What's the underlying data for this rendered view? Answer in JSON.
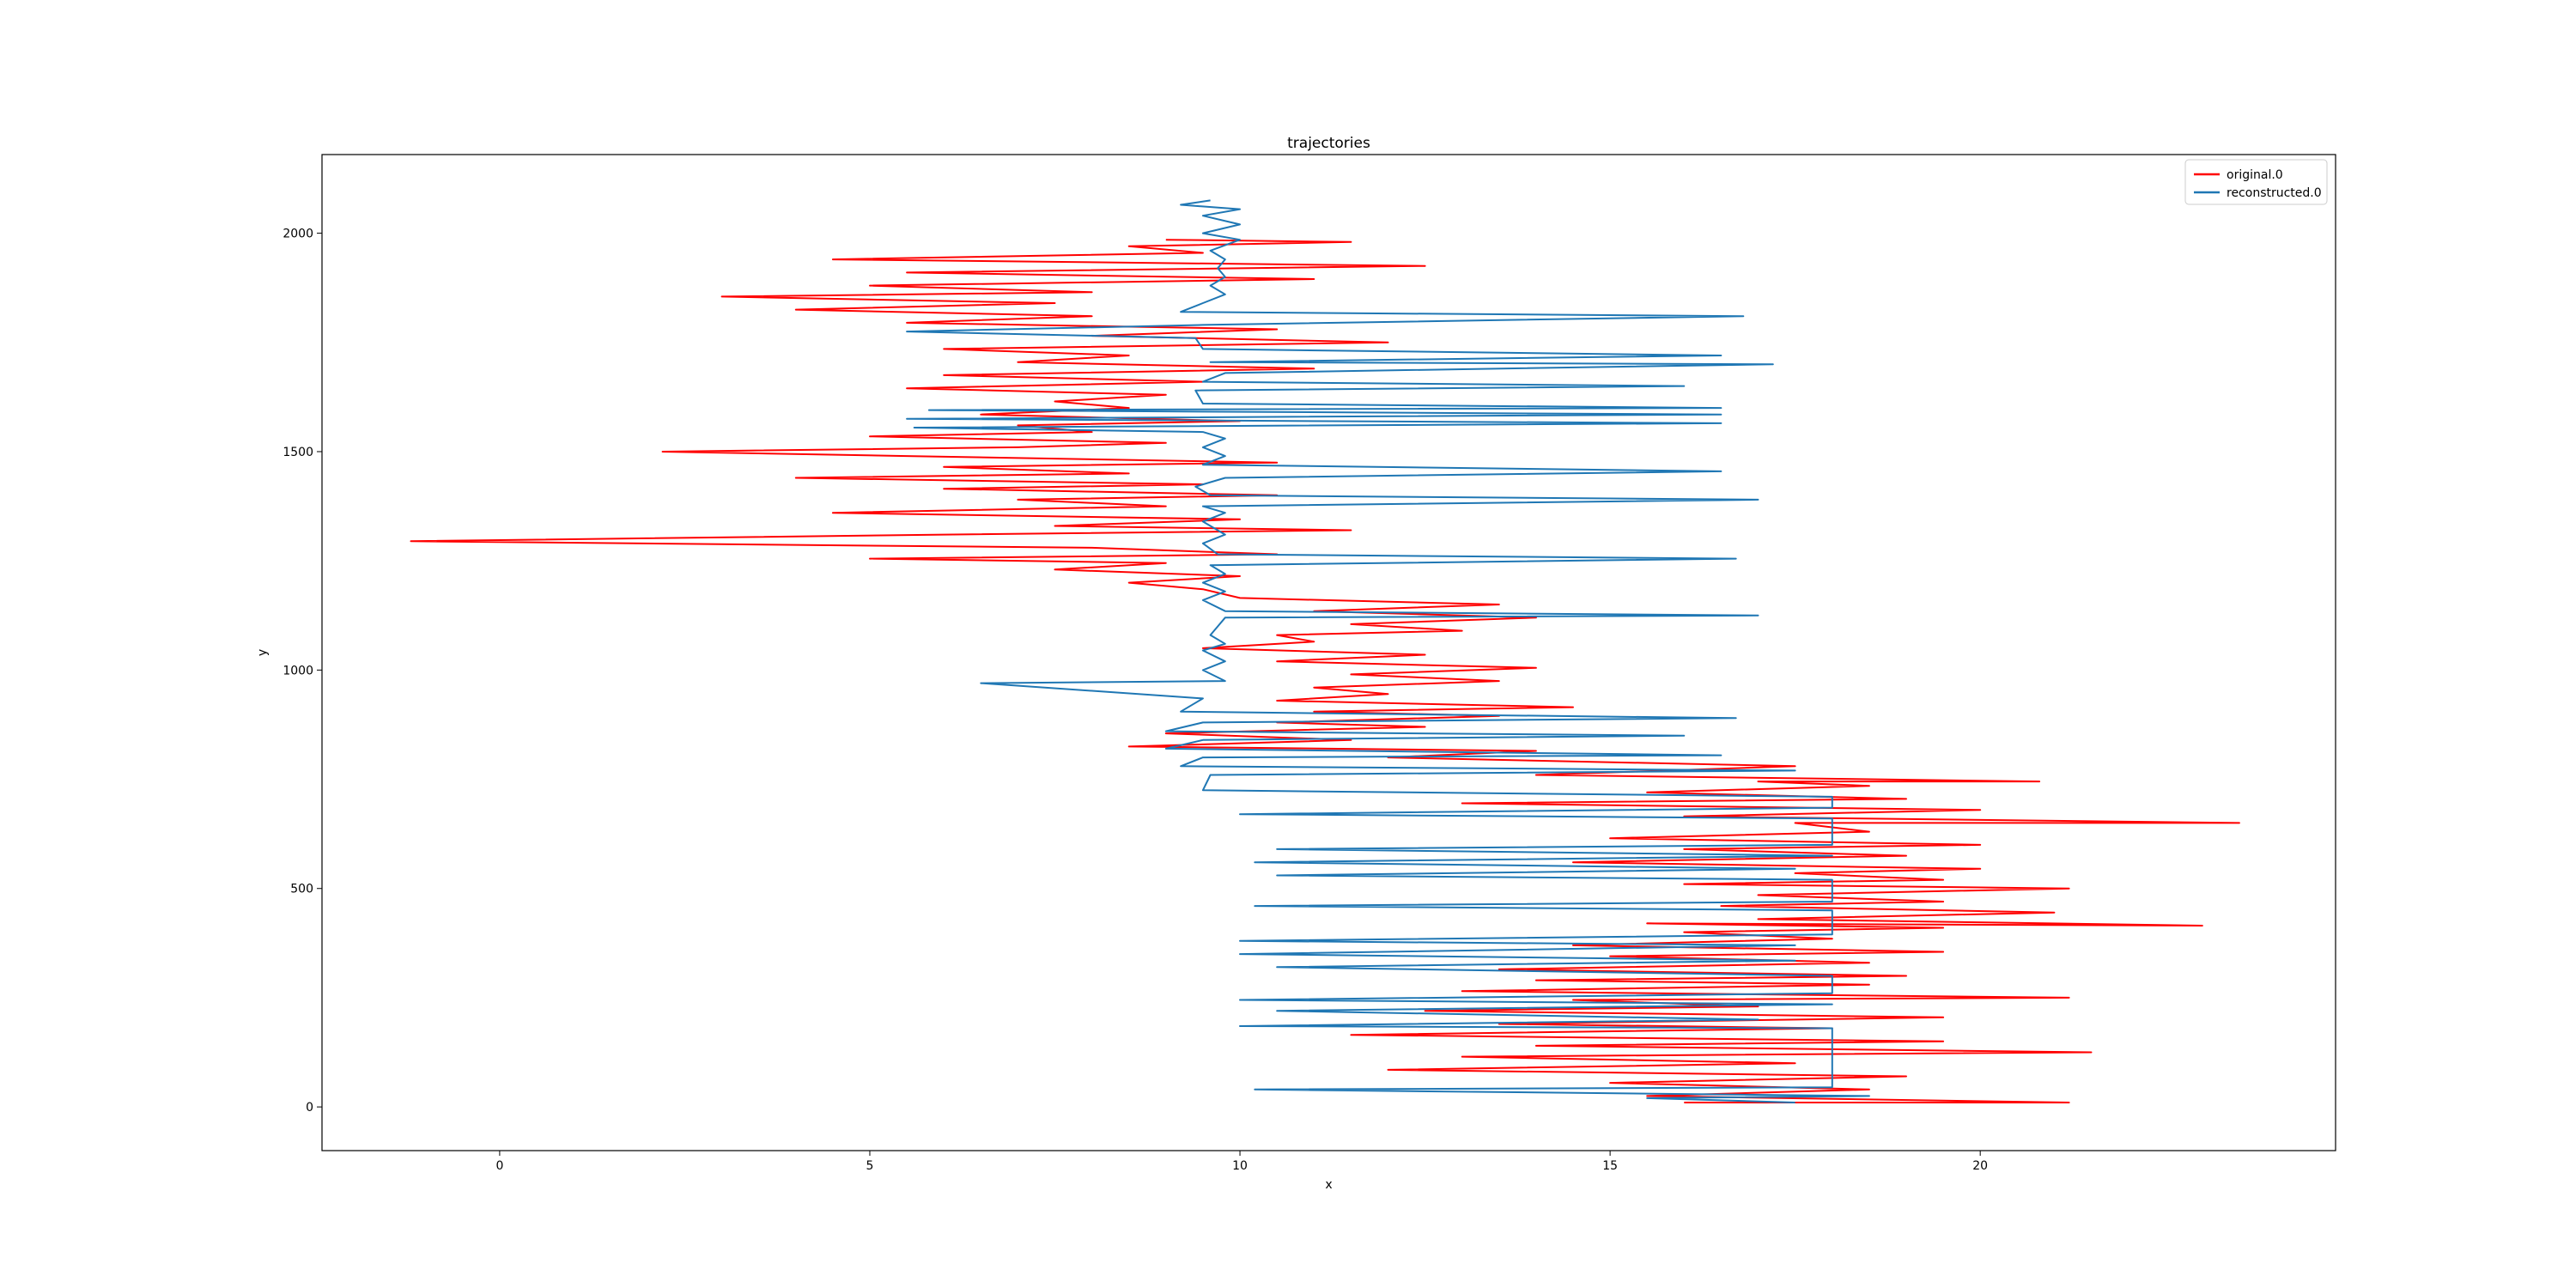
{
  "chart_data": {
    "type": "line",
    "title": "trajectories",
    "xlabel": "x",
    "ylabel": "y",
    "xlim": [
      -2.4,
      24.8
    ],
    "ylim": [
      -100,
      2180
    ],
    "xticks": [
      0,
      5,
      10,
      15,
      20
    ],
    "yticks": [
      0,
      500,
      1000,
      1500,
      2000
    ],
    "grid": false,
    "legend": {
      "placement": "top-right",
      "entries": [
        "original.0",
        "reconstructed.0"
      ]
    },
    "series": [
      {
        "name": "original.0",
        "color": "#ff0000",
        "points": [
          [
            16.0,
            10
          ],
          [
            21.2,
            10
          ],
          [
            15.5,
            25
          ],
          [
            18.5,
            40
          ],
          [
            15.0,
            55
          ],
          [
            19.0,
            70
          ],
          [
            12.0,
            85
          ],
          [
            17.5,
            100
          ],
          [
            13.0,
            115
          ],
          [
            21.5,
            125
          ],
          [
            14.0,
            140
          ],
          [
            19.5,
            150
          ],
          [
            11.5,
            165
          ],
          [
            18.0,
            180
          ],
          [
            13.5,
            190
          ],
          [
            19.5,
            205
          ],
          [
            12.5,
            220
          ],
          [
            17.0,
            230
          ],
          [
            14.5,
            245
          ],
          [
            21.2,
            250
          ],
          [
            13.0,
            265
          ],
          [
            18.5,
            280
          ],
          [
            14.0,
            290
          ],
          [
            19.0,
            300
          ],
          [
            13.5,
            315
          ],
          [
            18.5,
            330
          ],
          [
            15.0,
            345
          ],
          [
            19.5,
            355
          ],
          [
            14.5,
            370
          ],
          [
            18.0,
            385
          ],
          [
            16.0,
            400
          ],
          [
            19.5,
            410
          ],
          [
            15.5,
            420
          ],
          [
            23.0,
            415
          ],
          [
            17.0,
            430
          ],
          [
            21.0,
            445
          ],
          [
            16.5,
            460
          ],
          [
            19.5,
            470
          ],
          [
            17.0,
            485
          ],
          [
            21.2,
            500
          ],
          [
            16.0,
            510
          ],
          [
            19.5,
            520
          ],
          [
            17.5,
            535
          ],
          [
            20.0,
            545
          ],
          [
            14.5,
            560
          ],
          [
            19.0,
            575
          ],
          [
            16.0,
            590
          ],
          [
            20.0,
            600
          ],
          [
            15.0,
            615
          ],
          [
            18.5,
            630
          ],
          [
            17.5,
            650
          ],
          [
            23.5,
            650
          ],
          [
            16.0,
            665
          ],
          [
            20.0,
            680
          ],
          [
            13.0,
            695
          ],
          [
            19.0,
            705
          ],
          [
            15.5,
            720
          ],
          [
            18.5,
            735
          ],
          [
            17.0,
            745
          ],
          [
            20.8,
            745
          ],
          [
            14.0,
            760
          ],
          [
            17.5,
            780
          ],
          [
            12.0,
            800
          ],
          [
            14.0,
            815
          ],
          [
            8.5,
            825
          ],
          [
            11.5,
            840
          ],
          [
            9.0,
            855
          ],
          [
            12.5,
            870
          ],
          [
            10.5,
            880
          ],
          [
            13.5,
            895
          ],
          [
            11.0,
            905
          ],
          [
            14.5,
            915
          ],
          [
            10.5,
            930
          ],
          [
            12.0,
            945
          ],
          [
            11.0,
            960
          ],
          [
            13.5,
            975
          ],
          [
            11.5,
            990
          ],
          [
            14.0,
            1005
          ],
          [
            10.5,
            1020
          ],
          [
            12.5,
            1035
          ],
          [
            9.5,
            1050
          ],
          [
            11.0,
            1065
          ],
          [
            10.5,
            1080
          ],
          [
            13.0,
            1090
          ],
          [
            11.5,
            1105
          ],
          [
            14.0,
            1120
          ],
          [
            11.0,
            1135
          ],
          [
            13.5,
            1150
          ],
          [
            10.0,
            1165
          ],
          [
            9.5,
            1185
          ],
          [
            8.5,
            1200
          ],
          [
            10.0,
            1215
          ],
          [
            7.5,
            1230
          ],
          [
            9.0,
            1245
          ],
          [
            5.0,
            1255
          ],
          [
            10.5,
            1265
          ],
          [
            8.0,
            1280
          ],
          [
            -1.2,
            1295
          ],
          [
            6.0,
            1310
          ],
          [
            11.5,
            1320
          ],
          [
            7.5,
            1330
          ],
          [
            10.0,
            1345
          ],
          [
            4.5,
            1360
          ],
          [
            9.0,
            1375
          ],
          [
            7.0,
            1390
          ],
          [
            10.5,
            1400
          ],
          [
            6.0,
            1415
          ],
          [
            9.5,
            1425
          ],
          [
            4.0,
            1440
          ],
          [
            8.5,
            1450
          ],
          [
            6.0,
            1465
          ],
          [
            10.5,
            1475
          ],
          [
            5.5,
            1490
          ],
          [
            2.2,
            1500
          ],
          [
            7.0,
            1510
          ],
          [
            9.0,
            1520
          ],
          [
            5.0,
            1535
          ],
          [
            8.0,
            1545
          ],
          [
            7.0,
            1560
          ],
          [
            10.0,
            1570
          ],
          [
            6.5,
            1585
          ],
          [
            8.5,
            1600
          ],
          [
            7.5,
            1615
          ],
          [
            9.0,
            1630
          ],
          [
            5.5,
            1645
          ],
          [
            9.5,
            1660
          ],
          [
            6.0,
            1675
          ],
          [
            11.0,
            1690
          ],
          [
            7.0,
            1705
          ],
          [
            8.5,
            1720
          ],
          [
            6.0,
            1735
          ],
          [
            12.0,
            1750
          ],
          [
            8.0,
            1765
          ],
          [
            10.5,
            1780
          ],
          [
            5.5,
            1795
          ],
          [
            8.0,
            1810
          ],
          [
            4.0,
            1825
          ],
          [
            7.5,
            1840
          ],
          [
            3.0,
            1855
          ],
          [
            8.0,
            1865
          ],
          [
            5.0,
            1880
          ],
          [
            11.0,
            1895
          ],
          [
            5.5,
            1910
          ],
          [
            12.5,
            1925
          ],
          [
            4.5,
            1940
          ],
          [
            9.5,
            1955
          ],
          [
            8.5,
            1970
          ],
          [
            11.5,
            1980
          ],
          [
            9.0,
            1985
          ]
        ]
      },
      {
        "name": "reconstructed.0",
        "color": "#1f77b4",
        "points": [
          [
            17.5,
            10
          ],
          [
            15.5,
            20
          ],
          [
            18.5,
            25
          ],
          [
            10.2,
            40
          ],
          [
            18.0,
            45
          ],
          [
            18.0,
            180
          ],
          [
            10.0,
            185
          ],
          [
            17.0,
            200
          ],
          [
            10.5,
            220
          ],
          [
            18.0,
            235
          ],
          [
            10.0,
            245
          ],
          [
            18.0,
            260
          ],
          [
            18.0,
            300
          ],
          [
            10.5,
            320
          ],
          [
            17.5,
            335
          ],
          [
            10.0,
            350
          ],
          [
            17.5,
            370
          ],
          [
            10.0,
            380
          ],
          [
            18.0,
            395
          ],
          [
            18.0,
            450
          ],
          [
            10.2,
            460
          ],
          [
            18.0,
            470
          ],
          [
            18.0,
            520
          ],
          [
            10.5,
            530
          ],
          [
            17.5,
            545
          ],
          [
            10.2,
            560
          ],
          [
            18.0,
            575
          ],
          [
            10.5,
            590
          ],
          [
            18.0,
            600
          ],
          [
            18.0,
            660
          ],
          [
            10.0,
            670
          ],
          [
            18.0,
            685
          ],
          [
            18.0,
            710
          ],
          [
            9.5,
            725
          ],
          [
            9.6,
            760
          ],
          [
            17.5,
            770
          ],
          [
            9.2,
            780
          ],
          [
            9.5,
            800
          ],
          [
            16.5,
            805
          ],
          [
            9.0,
            820
          ],
          [
            9.5,
            840
          ],
          [
            16.0,
            850
          ],
          [
            9.0,
            860
          ],
          [
            9.5,
            880
          ],
          [
            16.7,
            890
          ],
          [
            9.2,
            905
          ],
          [
            9.5,
            935
          ],
          [
            6.5,
            970
          ],
          [
            9.8,
            975
          ],
          [
            9.5,
            1000
          ],
          [
            9.8,
            1020
          ],
          [
            9.5,
            1045
          ],
          [
            9.8,
            1060
          ],
          [
            9.6,
            1080
          ],
          [
            9.7,
            1100
          ],
          [
            9.8,
            1120
          ],
          [
            17.0,
            1125
          ],
          [
            9.8,
            1135
          ],
          [
            9.5,
            1160
          ],
          [
            9.8,
            1180
          ],
          [
            9.5,
            1200
          ],
          [
            9.8,
            1220
          ],
          [
            9.6,
            1240
          ],
          [
            16.7,
            1255
          ],
          [
            9.7,
            1265
          ],
          [
            9.5,
            1290
          ],
          [
            9.8,
            1310
          ],
          [
            9.5,
            1340
          ],
          [
            9.8,
            1360
          ],
          [
            9.5,
            1375
          ],
          [
            17.0,
            1390
          ],
          [
            9.6,
            1400
          ],
          [
            9.4,
            1420
          ],
          [
            9.8,
            1440
          ],
          [
            16.5,
            1455
          ],
          [
            9.5,
            1470
          ],
          [
            9.8,
            1490
          ],
          [
            9.5,
            1510
          ],
          [
            9.8,
            1530
          ],
          [
            9.5,
            1545
          ],
          [
            5.6,
            1555
          ],
          [
            16.5,
            1565
          ],
          [
            5.5,
            1575
          ],
          [
            16.5,
            1585
          ],
          [
            5.8,
            1595
          ],
          [
            16.5,
            1600
          ],
          [
            9.5,
            1610
          ],
          [
            9.4,
            1640
          ],
          [
            16.0,
            1650
          ],
          [
            9.5,
            1660
          ],
          [
            9.8,
            1680
          ],
          [
            17.2,
            1700
          ],
          [
            9.6,
            1705
          ],
          [
            16.5,
            1720
          ],
          [
            9.5,
            1735
          ],
          [
            9.4,
            1760
          ],
          [
            5.5,
            1775
          ],
          [
            9.5,
            1790
          ],
          [
            16.8,
            1810
          ],
          [
            9.2,
            1820
          ],
          [
            9.5,
            1840
          ],
          [
            9.8,
            1860
          ],
          [
            9.6,
            1880
          ],
          [
            9.8,
            1900
          ],
          [
            9.7,
            1920
          ],
          [
            9.8,
            1940
          ],
          [
            9.6,
            1960
          ],
          [
            10.0,
            1985
          ],
          [
            9.5,
            2000
          ],
          [
            10.0,
            2020
          ],
          [
            9.5,
            2040
          ],
          [
            10.0,
            2055
          ],
          [
            9.2,
            2065
          ],
          [
            9.6,
            2075
          ]
        ]
      }
    ]
  }
}
